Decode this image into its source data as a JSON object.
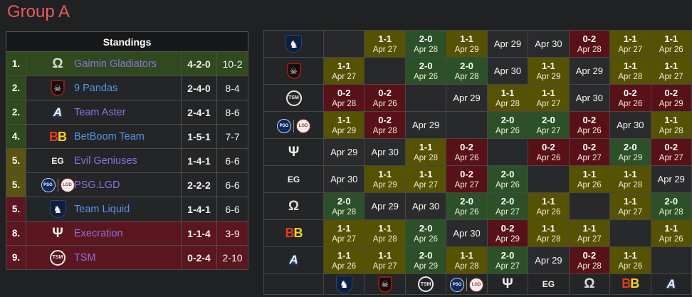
{
  "title": "Group A",
  "colors": {
    "title_red": "#ee5a5a",
    "zone_up_green": "#2f4a1e",
    "zone_stay_olive": "#5a5413",
    "zone_down_red": "#5c1620",
    "match_win_green": "#2c5128",
    "match_draw_olive": "#555200",
    "match_loss_red": "#591118",
    "link_blue": "#5795e7",
    "link_purple": "#8b72e0"
  },
  "standings": {
    "header": "Standings",
    "columns": [
      "rank",
      "team",
      "record",
      "game-score"
    ],
    "rows": [
      {
        "rank": "1.",
        "team": "Gaimin Gladiators",
        "record": "4-2-0",
        "score": "10-2",
        "zone": "up",
        "row": "row-up",
        "link": "link-purple",
        "icon": "gaimin-gladiators"
      },
      {
        "rank": "2.",
        "team": "9 Pandas",
        "record": "2-4-0",
        "score": "8-4",
        "zone": "up",
        "row": "",
        "link": "link-blue",
        "icon": "nine-pandas"
      },
      {
        "rank": "2.",
        "team": "Team Aster",
        "record": "2-4-1",
        "score": "8-6",
        "zone": "up",
        "row": "",
        "link": "link-purple",
        "icon": "team-aster"
      },
      {
        "rank": "4.",
        "team": "BetBoom Team",
        "record": "1-5-1",
        "score": "7-7",
        "zone": "up",
        "row": "",
        "link": "link-blue",
        "icon": "betboom"
      },
      {
        "rank": "5.",
        "team": "Evil Geniuses",
        "record": "1-4-1",
        "score": "6-6",
        "zone": "stay",
        "row": "",
        "link": "link-purple",
        "icon": "evil-geniuses"
      },
      {
        "rank": "5.",
        "team": "PSG.LGD",
        "record": "2-2-2",
        "score": "6-6",
        "zone": "stay",
        "row": "",
        "link": "link-purple",
        "icon": "psg-lgd"
      },
      {
        "rank": "5.",
        "team": "Team Liquid",
        "record": "1-4-1",
        "score": "6-6",
        "zone": "down",
        "row": "",
        "link": "link-blue",
        "icon": "team-liquid"
      },
      {
        "rank": "8.",
        "team": "Execration",
        "record": "1-1-4",
        "score": "3-9",
        "zone": "down",
        "row": "row-down",
        "link": "link-purple",
        "icon": "execration"
      },
      {
        "rank": "9.",
        "team": "TSM",
        "record": "0-2-4",
        "score": "2-10",
        "zone": "down",
        "row": "row-down",
        "link": "link-purple",
        "icon": "tsm"
      }
    ]
  },
  "matrix": {
    "teams": [
      "team-liquid",
      "nine-pandas",
      "tsm",
      "psg-lgd",
      "execration",
      "evil-geniuses",
      "gaimin-gladiators",
      "betboom",
      "team-aster"
    ],
    "rows": [
      [
        {
          "s": "diag"
        },
        {
          "s": "draw",
          "r": "1-1",
          "d": "Apr 27"
        },
        {
          "s": "win",
          "r": "2-0",
          "d": "Apr 28"
        },
        {
          "s": "draw",
          "r": "1-1",
          "d": "Apr 29"
        },
        {
          "s": "future",
          "d": "Apr 29"
        },
        {
          "s": "future",
          "d": "Apr 30"
        },
        {
          "s": "loss",
          "r": "0-2",
          "d": "Apr 28"
        },
        {
          "s": "draw",
          "r": "1-1",
          "d": "Apr 27"
        },
        {
          "s": "draw",
          "r": "1-1",
          "d": "Apr 26"
        }
      ],
      [
        {
          "s": "draw",
          "r": "1-1",
          "d": "Apr 27"
        },
        {
          "s": "diag"
        },
        {
          "s": "win",
          "r": "2-0",
          "d": "Apr 26"
        },
        {
          "s": "win",
          "r": "2-0",
          "d": "Apr 28"
        },
        {
          "s": "future",
          "d": "Apr 30"
        },
        {
          "s": "draw",
          "r": "1-1",
          "d": "Apr 29"
        },
        {
          "s": "future",
          "d": "Apr 29"
        },
        {
          "s": "draw",
          "r": "1-1",
          "d": "Apr 28"
        },
        {
          "s": "draw",
          "r": "1-1",
          "d": "Apr 27"
        }
      ],
      [
        {
          "s": "loss",
          "r": "0-2",
          "d": "Apr 28"
        },
        {
          "s": "loss",
          "r": "0-2",
          "d": "Apr 26"
        },
        {
          "s": "diag"
        },
        {
          "s": "future",
          "d": "Apr 29"
        },
        {
          "s": "draw",
          "r": "1-1",
          "d": "Apr 28"
        },
        {
          "s": "draw",
          "r": "1-1",
          "d": "Apr 27"
        },
        {
          "s": "future",
          "d": "Apr 30"
        },
        {
          "s": "loss",
          "r": "0-2",
          "d": "Apr 26"
        },
        {
          "s": "loss",
          "r": "0-2",
          "d": "Apr 29"
        }
      ],
      [
        {
          "s": "draw",
          "r": "1-1",
          "d": "Apr 29"
        },
        {
          "s": "loss",
          "r": "0-2",
          "d": "Apr 28"
        },
        {
          "s": "future",
          "d": "Apr 29"
        },
        {
          "s": "diag"
        },
        {
          "s": "win",
          "r": "2-0",
          "d": "Apr 26"
        },
        {
          "s": "win",
          "r": "2-0",
          "d": "Apr 27"
        },
        {
          "s": "loss",
          "r": "0-2",
          "d": "Apr 26"
        },
        {
          "s": "future",
          "d": "Apr 30"
        },
        {
          "s": "draw",
          "r": "1-1",
          "d": "Apr 28"
        }
      ],
      [
        {
          "s": "future",
          "d": "Apr 29"
        },
        {
          "s": "future",
          "d": "Apr 30"
        },
        {
          "s": "draw",
          "r": "1-1",
          "d": "Apr 28"
        },
        {
          "s": "loss",
          "r": "0-2",
          "d": "Apr 26"
        },
        {
          "s": "diag"
        },
        {
          "s": "loss",
          "r": "0-2",
          "d": "Apr 26"
        },
        {
          "s": "loss",
          "r": "0-2",
          "d": "Apr 27"
        },
        {
          "s": "win",
          "r": "2-0",
          "d": "Apr 29"
        },
        {
          "s": "loss",
          "r": "0-2",
          "d": "Apr 27"
        }
      ],
      [
        {
          "s": "future",
          "d": "Apr 30"
        },
        {
          "s": "draw",
          "r": "1-1",
          "d": "Apr 29"
        },
        {
          "s": "draw",
          "r": "1-1",
          "d": "Apr 27"
        },
        {
          "s": "loss",
          "r": "0-2",
          "d": "Apr 27"
        },
        {
          "s": "win",
          "r": "2-0",
          "d": "Apr 26"
        },
        {
          "s": "diag"
        },
        {
          "s": "draw",
          "r": "1-1",
          "d": "Apr 26"
        },
        {
          "s": "draw",
          "r": "1-1",
          "d": "Apr 28"
        },
        {
          "s": "future",
          "d": "Apr 29"
        }
      ],
      [
        {
          "s": "win",
          "r": "2-0",
          "d": "Apr 28"
        },
        {
          "s": "future",
          "d": "Apr 29"
        },
        {
          "s": "future",
          "d": "Apr 30"
        },
        {
          "s": "win",
          "r": "2-0",
          "d": "Apr 26"
        },
        {
          "s": "win",
          "r": "2-0",
          "d": "Apr 27"
        },
        {
          "s": "draw",
          "r": "1-1",
          "d": "Apr 26"
        },
        {
          "s": "diag"
        },
        {
          "s": "draw",
          "r": "1-1",
          "d": "Apr 27"
        },
        {
          "s": "win",
          "r": "2-0",
          "d": "Apr 28"
        }
      ],
      [
        {
          "s": "draw",
          "r": "1-1",
          "d": "Apr 27"
        },
        {
          "s": "draw",
          "r": "1-1",
          "d": "Apr 28"
        },
        {
          "s": "win",
          "r": "2-0",
          "d": "Apr 26"
        },
        {
          "s": "future",
          "d": "Apr 30"
        },
        {
          "s": "loss",
          "r": "0-2",
          "d": "Apr 29"
        },
        {
          "s": "draw",
          "r": "1-1",
          "d": "Apr 28"
        },
        {
          "s": "draw",
          "r": "1-1",
          "d": "Apr 27"
        },
        {
          "s": "diag"
        },
        {
          "s": "draw",
          "r": "1-1",
          "d": "Apr 26"
        }
      ],
      [
        {
          "s": "draw",
          "r": "1-1",
          "d": "Apr 26"
        },
        {
          "s": "draw",
          "r": "1-1",
          "d": "Apr 27"
        },
        {
          "s": "win",
          "r": "2-0",
          "d": "Apr 29"
        },
        {
          "s": "draw",
          "r": "1-1",
          "d": "Apr 28"
        },
        {
          "s": "win",
          "r": "2-0",
          "d": "Apr 27"
        },
        {
          "s": "future",
          "d": "Apr 29"
        },
        {
          "s": "loss",
          "r": "0-2",
          "d": "Apr 28"
        },
        {
          "s": "draw",
          "r": "1-1",
          "d": "Apr 26"
        },
        {
          "s": "diag"
        }
      ]
    ]
  },
  "icons": {
    "team-liquid": {
      "glyph": "♞",
      "cls": "ic-liquid"
    },
    "nine-pandas": {
      "glyph": "☠",
      "cls": "ic-pandas"
    },
    "tsm": {
      "glyph": "TSM",
      "cls": "ic-tsm"
    },
    "psg-lgd": {
      "sep": true,
      "parts": [
        {
          "glyph": "PSG",
          "cls": "ic-psg"
        },
        {
          "glyph": "LGD",
          "cls": "ic-lgd"
        }
      ]
    },
    "execration": {
      "glyph": "Ψ",
      "cls": "ic-exe"
    },
    "evil-geniuses": {
      "glyph": "EG",
      "cls": "ic-eg"
    },
    "gaimin-gladiators": {
      "glyph": "Ω",
      "cls": "ic-gg"
    },
    "betboom": {
      "parts": [
        {
          "glyph": "B",
          "cls": "ic-bbr"
        },
        {
          "glyph": "B",
          "cls": "ic-bby"
        }
      ]
    },
    "team-aster": {
      "glyph": "A",
      "cls": "ic-aster"
    }
  }
}
